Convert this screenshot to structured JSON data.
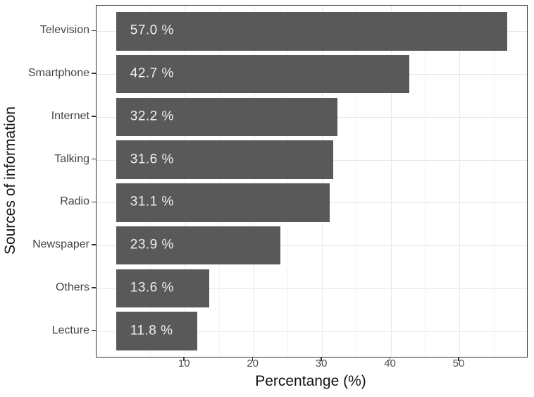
{
  "chart_data": {
    "type": "bar",
    "orientation": "horizontal",
    "title": "",
    "xlabel": "Percentange (%)",
    "ylabel": "Sources of information",
    "categories": [
      "Television",
      "Smartphone",
      "Internet",
      "Talking",
      "Radio",
      "Newspaper",
      "Others",
      "Lecture"
    ],
    "values": [
      57.0,
      42.7,
      32.2,
      31.6,
      31.1,
      23.9,
      13.6,
      11.8
    ],
    "bar_labels": [
      "57.0 %",
      "42.7 %",
      "32.2 %",
      "31.6 %",
      "31.1 %",
      "23.9 %",
      "13.6 %",
      "11.8 %"
    ],
    "x_ticks": [
      10,
      20,
      30,
      40,
      50
    ],
    "x_minor_ticks": [
      5,
      15,
      25,
      35,
      45,
      55
    ],
    "xlim": [
      0,
      59.85
    ],
    "grid": true,
    "legend": "none",
    "colors": {
      "bar": "#595959",
      "bar_label": "#f0f0f0",
      "axis_text": "#4d4d4d",
      "category_text": "#444444",
      "axis_title": "#111111",
      "panel_border": "#333333",
      "grid_major": "#e7e7e7",
      "grid_minor": "#f3f3f3",
      "background": "#ffffff"
    }
  }
}
